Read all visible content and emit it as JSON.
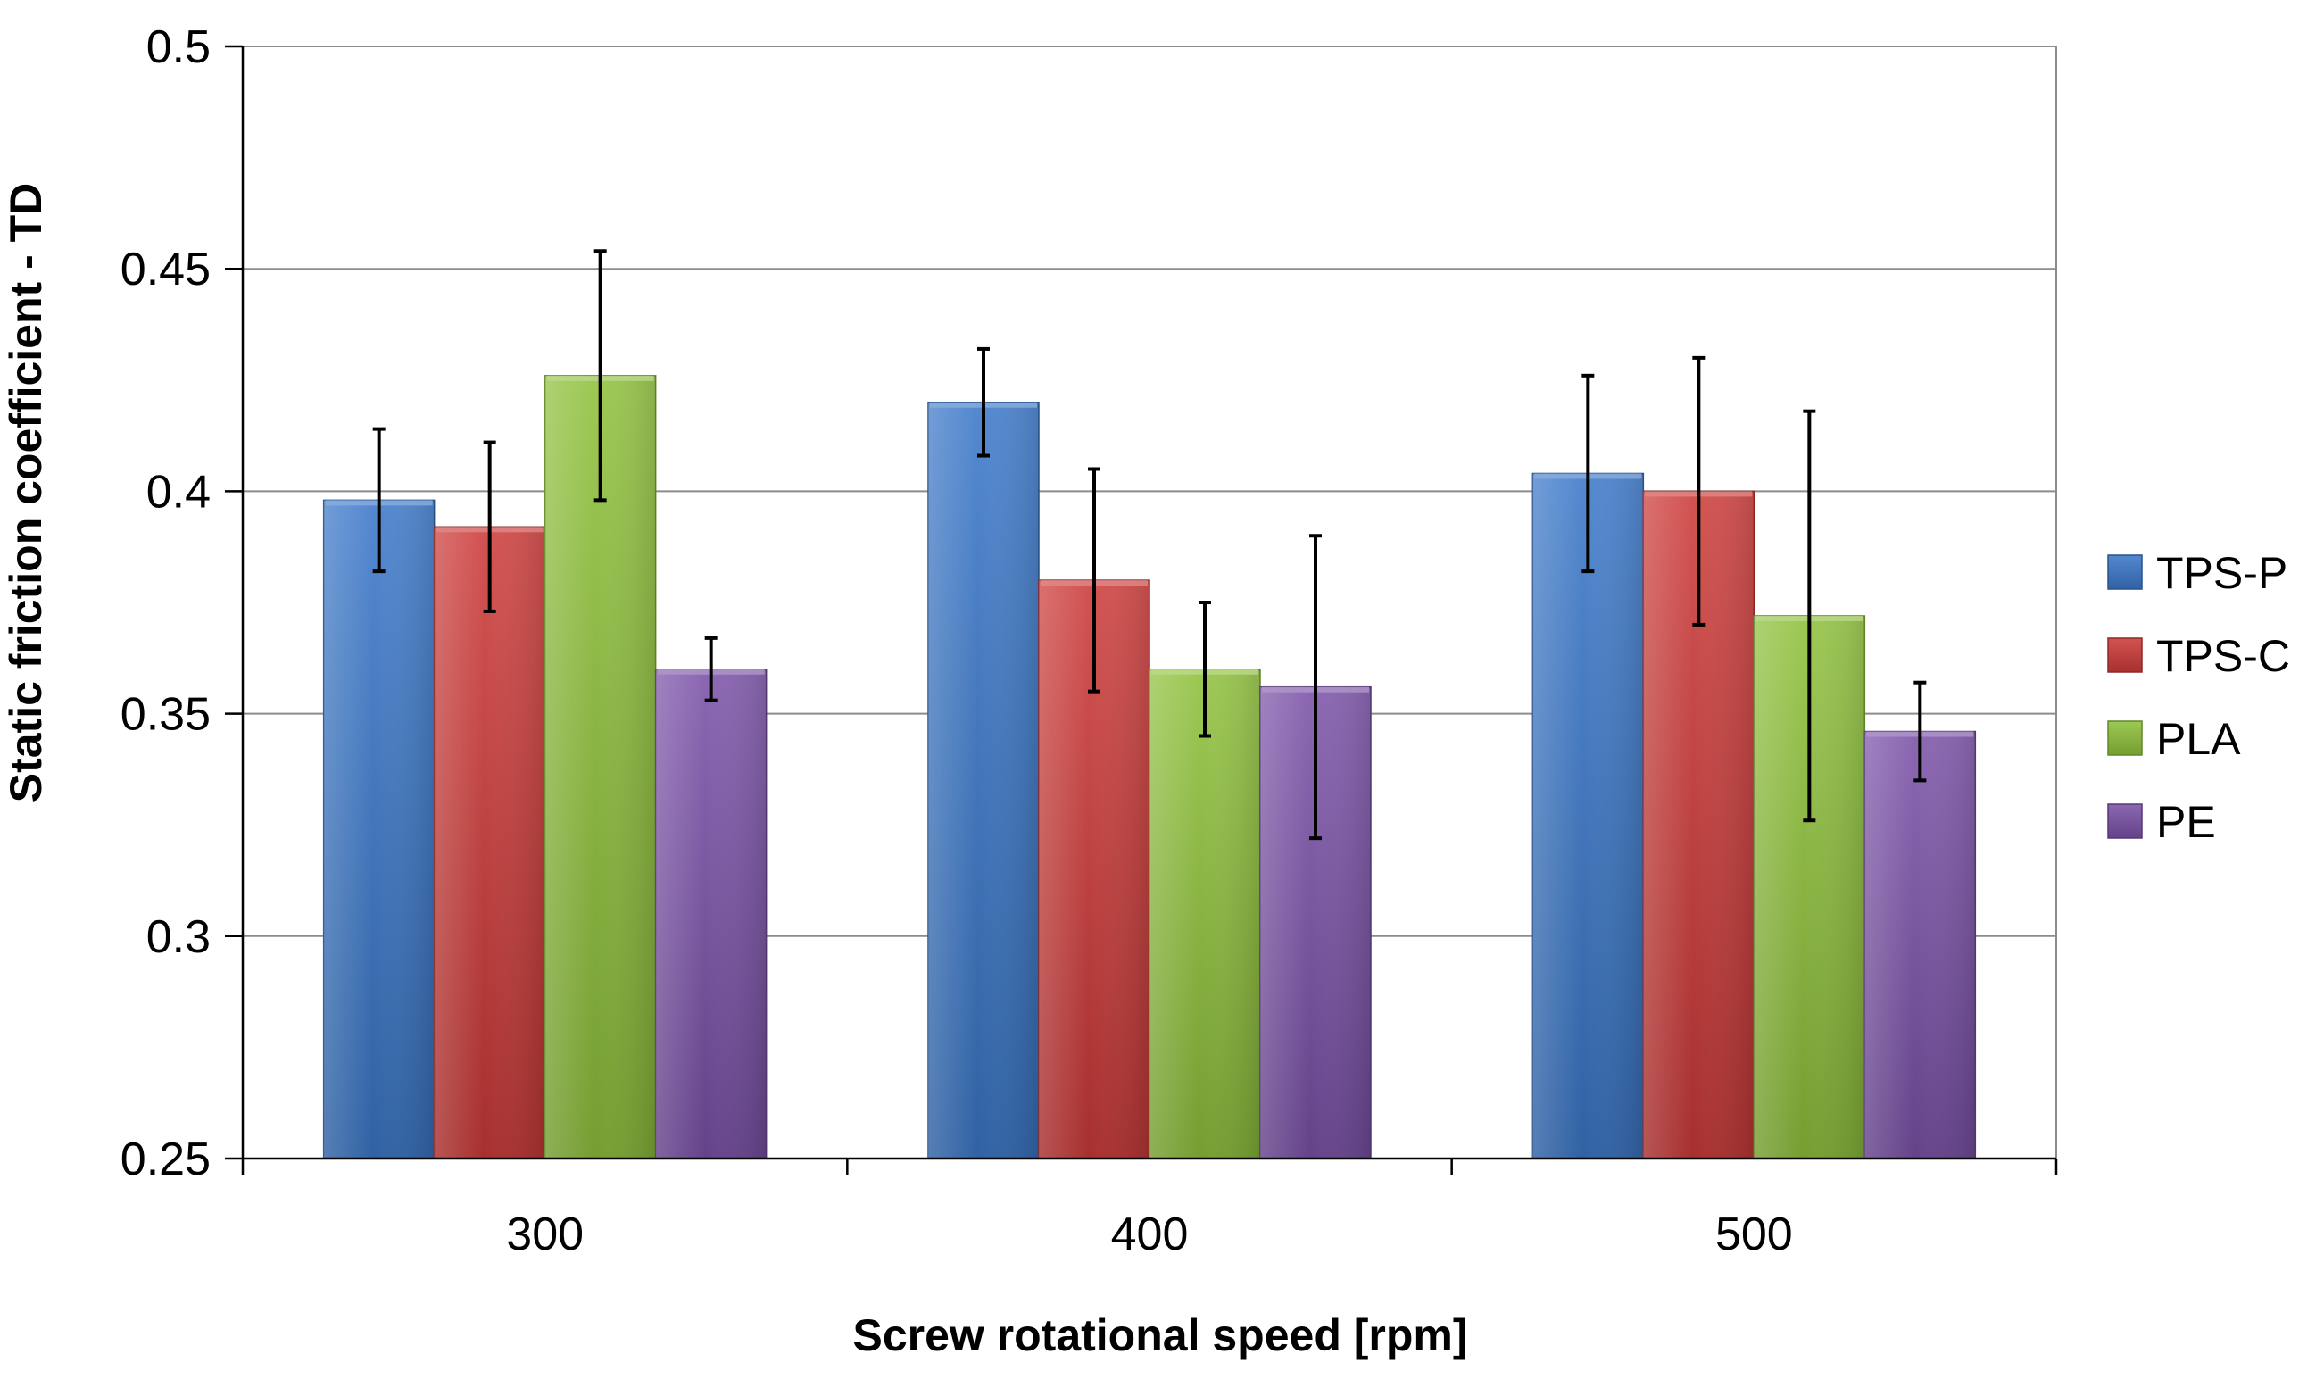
{
  "chart_data": {
    "type": "bar",
    "title": "",
    "xlabel": "Screw rotational speed [rpm]",
    "ylabel": "Static friction coefficient  - TD",
    "ylim": [
      0.25,
      0.5
    ],
    "yticks": [
      0.25,
      0.3,
      0.35,
      0.4,
      0.45,
      0.5
    ],
    "ytick_labels": [
      "0.25",
      "0.3",
      "0.35",
      "0.4",
      "0.45",
      "0.5"
    ],
    "categories": [
      "300",
      "400",
      "500"
    ],
    "grid": true,
    "legend_position": "right",
    "series": [
      {
        "name": "TPS-P",
        "color": "#3b78c8",
        "values": [
          0.398,
          0.42,
          0.404
        ],
        "errors": [
          0.016,
          0.012,
          0.022
        ]
      },
      {
        "name": "TPS-C",
        "color": "#cc3b39",
        "values": [
          0.392,
          0.38,
          0.4
        ],
        "errors": [
          0.019,
          0.025,
          0.03
        ]
      },
      {
        "name": "PLA",
        "color": "#8fc13c",
        "values": [
          0.426,
          0.36,
          0.372
        ],
        "errors": [
          0.028,
          0.015,
          0.046
        ]
      },
      {
        "name": "PE",
        "color": "#7b52a8",
        "values": [
          0.36,
          0.356,
          0.346
        ],
        "errors": [
          0.007,
          0.034,
          0.011
        ]
      }
    ]
  }
}
